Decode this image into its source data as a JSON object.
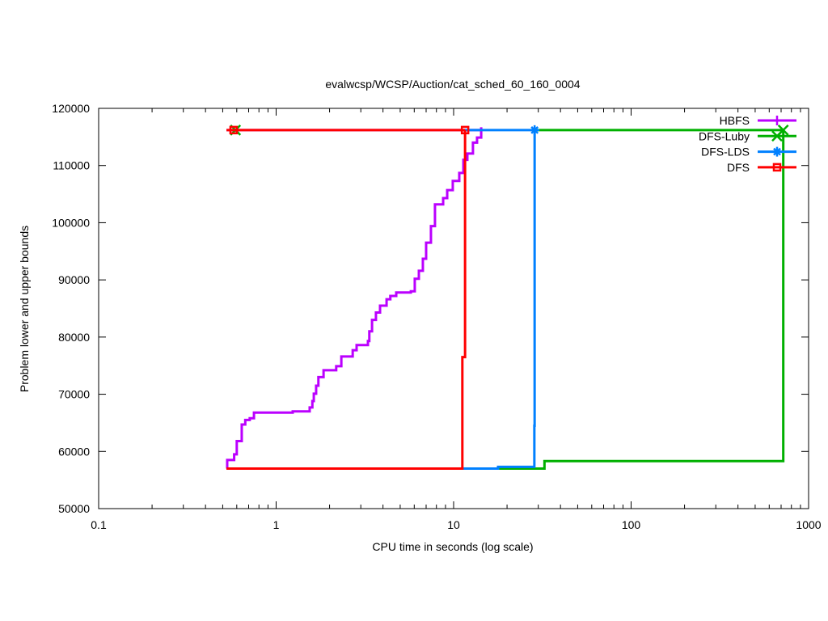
{
  "chart_data": {
    "type": "line",
    "title": "evalwcsp/WCSP/Auction/cat_sched_60_160_0004",
    "xlabel": "CPU time in seconds (log scale)",
    "ylabel": "Problem lower and upper bounds",
    "xscale": "log",
    "xlim": [
      0.1,
      1000
    ],
    "ylim": [
      50000,
      120000
    ],
    "xticks": [
      0.1,
      1,
      10,
      100,
      1000
    ],
    "xtick_labels": [
      "0.1",
      "1",
      "10",
      "100",
      "1000"
    ],
    "yticks": [
      50000,
      60000,
      70000,
      80000,
      90000,
      100000,
      110000,
      120000
    ],
    "ytick_labels": [
      "50000",
      "60000",
      "70000",
      "80000",
      "90000",
      "100000",
      "110000",
      "120000"
    ],
    "grid": false,
    "legend_position": "top-right",
    "series": [
      {
        "name": "HBFS",
        "color": "#bb00ff",
        "marker": "plus",
        "lower": [
          [
            0.525,
            57000
          ],
          [
            0.53,
            58500
          ],
          [
            0.58,
            59500
          ],
          [
            0.6,
            61800
          ],
          [
            0.64,
            64700
          ],
          [
            0.67,
            65500
          ],
          [
            0.71,
            65800
          ],
          [
            0.75,
            66800
          ],
          [
            1.24,
            67000
          ],
          [
            1.545,
            67700
          ],
          [
            1.6,
            68800
          ],
          [
            1.63,
            70100
          ],
          [
            1.68,
            71500
          ],
          [
            1.73,
            73000
          ],
          [
            1.85,
            74200
          ],
          [
            2.18,
            74900
          ],
          [
            2.33,
            76600
          ],
          [
            2.7,
            77700
          ],
          [
            2.84,
            78600
          ],
          [
            3.29,
            79300
          ],
          [
            3.35,
            81000
          ],
          [
            3.47,
            83000
          ],
          [
            3.65,
            84300
          ],
          [
            3.85,
            85500
          ],
          [
            4.19,
            86600
          ],
          [
            4.4,
            87200
          ],
          [
            4.75,
            87800
          ],
          [
            5.74,
            88000
          ],
          [
            6.04,
            90200
          ],
          [
            6.37,
            91600
          ],
          [
            6.71,
            93700
          ],
          [
            7.0,
            96500
          ],
          [
            7.45,
            99400
          ],
          [
            7.85,
            103200
          ],
          [
            8.73,
            104300
          ],
          [
            9.2,
            105700
          ],
          [
            9.89,
            107300
          ],
          [
            10.76,
            108700
          ],
          [
            11.35,
            111000
          ],
          [
            11.95,
            112100
          ],
          [
            12.85,
            114000
          ],
          [
            13.55,
            114900
          ],
          [
            14.3,
            116700
          ]
        ],
        "upper": [
          [
            0.525,
            116200
          ],
          [
            14.3,
            116200
          ]
        ]
      },
      {
        "name": "DFS-Luby",
        "color": "#00b000",
        "marker": "x",
        "lower": [
          [
            17.8,
            57000
          ],
          [
            32.5,
            57000
          ],
          [
            32.5,
            58300
          ],
          [
            720,
            58300
          ],
          [
            720,
            116200
          ]
        ],
        "upper": [
          [
            28.6,
            116200
          ],
          [
            720,
            116200
          ]
        ],
        "markers": [
          [
            0.59,
            116200
          ],
          [
            720,
            116200
          ]
        ]
      },
      {
        "name": "DFS-LDS",
        "color": "#0080ff",
        "marker": "star",
        "lower": [
          [
            11.2,
            57000
          ],
          [
            17.8,
            57000
          ],
          [
            17.8,
            57300
          ],
          [
            28.5,
            57300
          ],
          [
            28.5,
            64500
          ],
          [
            28.6,
            116200
          ]
        ],
        "upper": [
          [
            11.6,
            116200
          ],
          [
            28.6,
            116200
          ]
        ],
        "markers": [
          [
            28.6,
            116200
          ]
        ]
      },
      {
        "name": "DFS",
        "color": "#ff0000",
        "marker": "square",
        "lower": [
          [
            0.525,
            57000
          ],
          [
            11.2,
            57000
          ],
          [
            11.2,
            76500
          ],
          [
            11.45,
            76500
          ],
          [
            11.6,
            116200
          ]
        ],
        "upper": [
          [
            0.525,
            116200
          ],
          [
            11.6,
            116200
          ]
        ],
        "markers": [
          [
            0.576,
            116200
          ],
          [
            11.6,
            116200
          ]
        ]
      }
    ]
  }
}
